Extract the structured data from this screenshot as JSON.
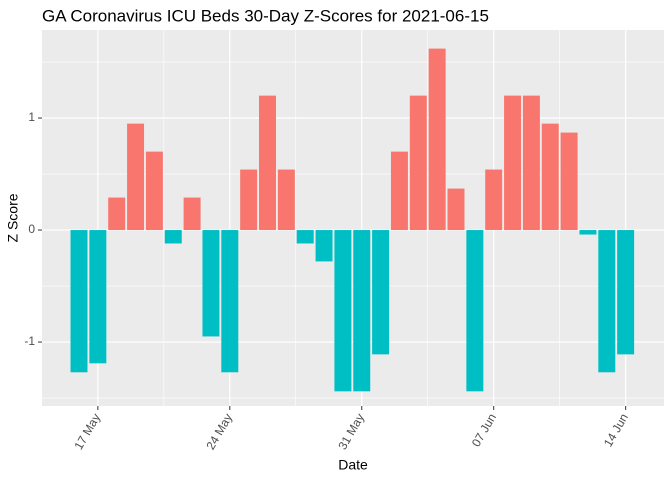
{
  "chart_data": {
    "type": "bar",
    "title": "GA Coronavirus ICU Beds 30-Day Z-Scores for 2021-06-15",
    "x_label": "Date",
    "y_label": "Z Score",
    "categories": [
      null,
      "17 May",
      null,
      null,
      null,
      null,
      null,
      null,
      "24 May",
      null,
      null,
      null,
      null,
      null,
      null,
      "31 May",
      null,
      null,
      null,
      null,
      null,
      null,
      "07 Jun",
      null,
      null,
      null,
      null,
      null,
      null,
      "14 Jun"
    ],
    "values": [
      -1.27,
      -1.19,
      0.29,
      0.95,
      0.7,
      -0.12,
      0.29,
      -0.95,
      -1.27,
      0.54,
      1.2,
      0.54,
      -0.12,
      -0.28,
      -1.44,
      -1.44,
      -1.11,
      0.7,
      1.2,
      1.62,
      0.37,
      -1.44,
      0.54,
      1.2,
      1.2,
      0.95,
      0.87,
      -0.04,
      -1.27,
      -1.11
    ],
    "colors": {
      "positive": "#F8766D",
      "negative": "#00BFC4"
    },
    "ylim": [
      -1.571,
      1.786
    ],
    "yticks": [
      -1,
      0,
      1
    ],
    "grid": true
  }
}
